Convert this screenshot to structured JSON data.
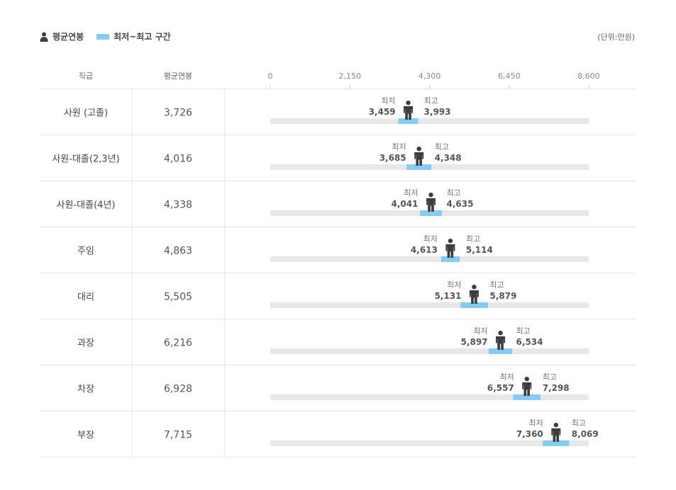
{
  "legend": {
    "average_label": "평균연봉",
    "range_label": "최저~최고 구간",
    "unit": "(단위:만원)"
  },
  "colors": {
    "range": "#86cbf5",
    "track": "#e8e8e8",
    "person": "#3d3d3d"
  },
  "header": {
    "rank": "직급",
    "avg": "평균연봉"
  },
  "labels": {
    "min": "최저",
    "max": "최고"
  },
  "chart_data": {
    "type": "range",
    "axis": {
      "min": 0,
      "max": 8600,
      "ticks": [
        "0",
        "2,150",
        "4,300",
        "6,450",
        "8,600"
      ],
      "tick_values": [
        0,
        2150,
        4300,
        6450,
        8600
      ]
    },
    "rows": [
      {
        "rank": "사원 (고졸)",
        "avg": 3726,
        "avg_label": "3,726",
        "min": 3459,
        "min_label": "3,459",
        "max": 3993,
        "max_label": "3,993"
      },
      {
        "rank": "사원-대졸(2,3년)",
        "avg": 4016,
        "avg_label": "4,016",
        "min": 3685,
        "min_label": "3,685",
        "max": 4348,
        "max_label": "4,348"
      },
      {
        "rank": "사원-대졸(4년)",
        "avg": 4338,
        "avg_label": "4,338",
        "min": 4041,
        "min_label": "4,041",
        "max": 4635,
        "max_label": "4,635"
      },
      {
        "rank": "주임",
        "avg": 4863,
        "avg_label": "4,863",
        "min": 4613,
        "min_label": "4,613",
        "max": 5114,
        "max_label": "5,114"
      },
      {
        "rank": "대리",
        "avg": 5505,
        "avg_label": "5,505",
        "min": 5131,
        "min_label": "5,131",
        "max": 5879,
        "max_label": "5,879"
      },
      {
        "rank": "과장",
        "avg": 6216,
        "avg_label": "6,216",
        "min": 5897,
        "min_label": "5,897",
        "max": 6534,
        "max_label": "6,534"
      },
      {
        "rank": "차장",
        "avg": 6928,
        "avg_label": "6,928",
        "min": 6557,
        "min_label": "6,557",
        "max": 7298,
        "max_label": "7,298"
      },
      {
        "rank": "부장",
        "avg": 7715,
        "avg_label": "7,715",
        "min": 7360,
        "min_label": "7,360",
        "max": 8069,
        "max_label": "8,069"
      }
    ]
  }
}
